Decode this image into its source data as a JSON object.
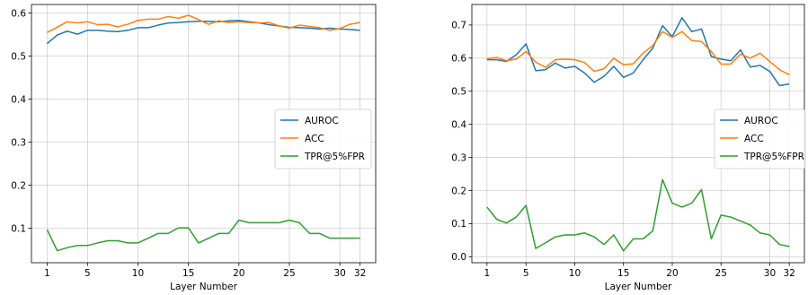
{
  "chart_data": [
    {
      "type": "line",
      "xlabel": "Layer Number",
      "ylabel": "",
      "title": "",
      "x": [
        1,
        2,
        3,
        4,
        5,
        6,
        7,
        8,
        9,
        10,
        11,
        12,
        13,
        14,
        15,
        16,
        17,
        18,
        19,
        20,
        21,
        22,
        23,
        24,
        25,
        26,
        27,
        28,
        29,
        30,
        31,
        32
      ],
      "xticks": [
        1,
        5,
        10,
        15,
        20,
        25,
        30,
        32
      ],
      "xlim": [
        -0.55,
        33.55
      ],
      "ylim": [
        0.02,
        0.62
      ],
      "yticks": [
        0.1,
        0.2,
        0.3,
        0.4,
        0.5,
        0.6
      ],
      "ytick_labels": [
        "0.1",
        "0.2",
        "0.3",
        "0.4",
        "0.5",
        "0.6"
      ],
      "grid": true,
      "legend_position": "center-right",
      "series": [
        {
          "name": "AUROC",
          "color": "#1f77b4",
          "values": [
            0.529,
            0.549,
            0.558,
            0.551,
            0.56,
            0.56,
            0.558,
            0.557,
            0.56,
            0.566,
            0.566,
            0.572,
            0.577,
            0.578,
            0.58,
            0.581,
            0.581,
            0.58,
            0.582,
            0.583,
            0.58,
            0.577,
            0.573,
            0.57,
            0.567,
            0.566,
            0.565,
            0.563,
            0.565,
            0.563,
            0.562,
            0.56
          ]
        },
        {
          "name": "ACC",
          "color": "#ff7f0e",
          "values": [
            0.555,
            0.567,
            0.58,
            0.577,
            0.58,
            0.573,
            0.574,
            0.568,
            0.574,
            0.583,
            0.586,
            0.586,
            0.592,
            0.588,
            0.595,
            0.585,
            0.574,
            0.582,
            0.578,
            0.58,
            0.578,
            0.577,
            0.578,
            0.57,
            0.565,
            0.572,
            0.569,
            0.566,
            0.56,
            0.564,
            0.574,
            0.578
          ]
        },
        {
          "name": "TPR@5%FPR",
          "color": "#2ca02c",
          "values": [
            0.097,
            0.048,
            0.055,
            0.06,
            0.06,
            0.066,
            0.071,
            0.071,
            0.066,
            0.066,
            0.077,
            0.088,
            0.088,
            0.101,
            0.101,
            0.066,
            0.077,
            0.088,
            0.088,
            0.119,
            0.113,
            0.113,
            0.113,
            0.113,
            0.119,
            0.113,
            0.088,
            0.088,
            0.077,
            0.077,
            0.077,
            0.077
          ]
        }
      ]
    },
    {
      "type": "line",
      "xlabel": "Layer Number",
      "ylabel": "",
      "title": "",
      "x": [
        1,
        2,
        3,
        4,
        5,
        6,
        7,
        8,
        9,
        10,
        11,
        12,
        13,
        14,
        15,
        16,
        17,
        18,
        19,
        20,
        21,
        22,
        23,
        24,
        25,
        26,
        27,
        28,
        29,
        30,
        31,
        32
      ],
      "xticks": [
        1,
        5,
        10,
        15,
        20,
        25,
        30,
        32
      ],
      "xlim": [
        -0.55,
        33.55
      ],
      "ylim": [
        -0.018,
        0.762
      ],
      "yticks": [
        0.0,
        0.1,
        0.2,
        0.3,
        0.4,
        0.5,
        0.6,
        0.7
      ],
      "ytick_labels": [
        "0.0",
        "0.1",
        "0.2",
        "0.3",
        "0.4",
        "0.5",
        "0.6",
        "0.7"
      ],
      "grid": true,
      "legend_position": "center-right",
      "series": [
        {
          "name": "AUROC",
          "color": "#1f77b4",
          "values": [
            0.595,
            0.595,
            0.59,
            0.61,
            0.643,
            0.562,
            0.565,
            0.585,
            0.57,
            0.575,
            0.555,
            0.527,
            0.545,
            0.575,
            0.542,
            0.555,
            0.595,
            0.63,
            0.698,
            0.665,
            0.722,
            0.68,
            0.688,
            0.605,
            0.597,
            0.592,
            0.625,
            0.573,
            0.578,
            0.56,
            0.517,
            0.522
          ]
        },
        {
          "name": "ACC",
          "color": "#ff7f0e",
          "values": [
            0.598,
            0.602,
            0.592,
            0.597,
            0.62,
            0.588,
            0.572,
            0.595,
            0.597,
            0.595,
            0.587,
            0.56,
            0.568,
            0.6,
            0.58,
            0.583,
            0.615,
            0.638,
            0.68,
            0.663,
            0.68,
            0.653,
            0.65,
            0.62,
            0.582,
            0.582,
            0.612,
            0.6,
            0.615,
            0.59,
            0.565,
            0.55
          ]
        },
        {
          "name": "TPR@5%FPR",
          "color": "#2ca02c",
          "values": [
            0.15,
            0.113,
            0.102,
            0.12,
            0.155,
            0.025,
            0.042,
            0.06,
            0.066,
            0.066,
            0.072,
            0.06,
            0.037,
            0.066,
            0.018,
            0.054,
            0.054,
            0.078,
            0.233,
            0.162,
            0.15,
            0.162,
            0.203,
            0.054,
            0.126,
            0.12,
            0.108,
            0.096,
            0.072,
            0.066,
            0.037,
            0.031
          ]
        }
      ]
    }
  ]
}
